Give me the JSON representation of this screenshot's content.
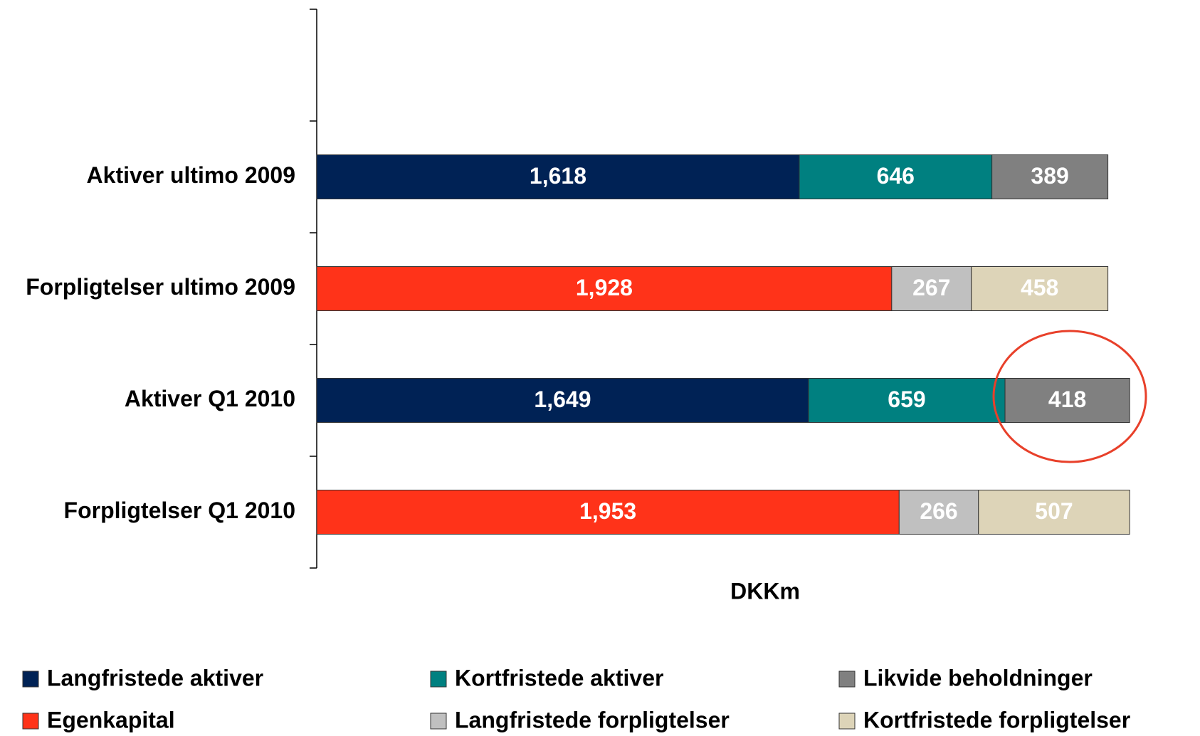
{
  "chart_data": {
    "type": "bar",
    "orientation": "horizontal",
    "stacked": true,
    "x_label": "DKKm",
    "categories": [
      "Aktiver ultimo 2009",
      "Forpligtelser ultimo 2009",
      "Aktiver Q1 2010",
      "Forpligtelser Q1 2010"
    ],
    "series": [
      {
        "name": "Langfristede aktiver",
        "color": "#002255",
        "values": [
          1618,
          null,
          1649,
          null
        ],
        "value_labels": [
          "1,618",
          null,
          "1,649",
          null
        ]
      },
      {
        "name": "Kortfristede aktiver",
        "color": "#008080",
        "values": [
          646,
          null,
          659,
          null
        ]
      },
      {
        "name": "Likvide beholdninger",
        "color": "#808080",
        "values": [
          389,
          null,
          418,
          null
        ]
      },
      {
        "name": "Egenkapital",
        "color": "#ff3319",
        "values": [
          null,
          1928,
          null,
          1953
        ],
        "value_labels": [
          null,
          "1,928",
          null,
          "1,953"
        ]
      },
      {
        "name": "Langfristede forpligtelser",
        "color": "#c0c0c0",
        "values": [
          null,
          267,
          null,
          266
        ]
      },
      {
        "name": "Kortfristede forpligtelser",
        "color": "#ddd4b8",
        "values": [
          null,
          458,
          null,
          507
        ]
      }
    ],
    "legend": "bottom"
  }
}
